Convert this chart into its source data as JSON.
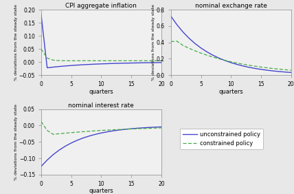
{
  "title1": "CPI aggregate inflation",
  "title2": "nominal exchange rate",
  "title3": "nominal interest rate",
  "xlabel": "quarters",
  "ylabel": "% deviations from the steady state",
  "quarters": 20,
  "color_unconstrained": "#4444cc",
  "color_constrained": "#44aa44",
  "legend_unconstrained": "unconstrained policy",
  "legend_constrained": "constrained policy",
  "cpi_ylim": [
    -0.05,
    0.2
  ],
  "ner_ylim": [
    0.0,
    0.8
  ],
  "nir_ylim": [
    -0.15,
    0.05
  ],
  "cpi_yticks": [
    -0.05,
    0,
    0.05,
    0.1,
    0.15,
    0.2
  ],
  "ner_yticks": [
    0,
    0.2,
    0.4,
    0.6,
    0.8
  ],
  "nir_yticks": [
    -0.15,
    -0.1,
    -0.05,
    0,
    0.05
  ],
  "bg_color": "#e8e8e8",
  "ax_bg_color": "#f0f0f0"
}
